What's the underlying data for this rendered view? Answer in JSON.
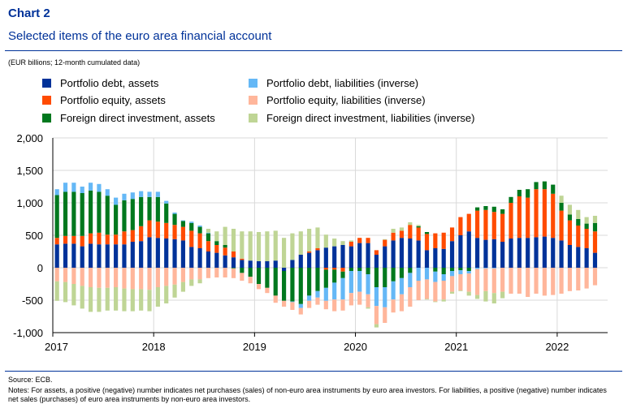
{
  "header": {
    "label": "Chart 2",
    "title": "Selected items of the euro area financial account",
    "units": "(EUR billions; 12-month cumulated data)"
  },
  "footer": {
    "source": "Source: ECB.",
    "notes": "Notes: For assets, a positive (negative) number indicates net purchases (sales) of non-euro area instruments by euro area investors. For liabilities, a positive (negative) number indicates net sales (purchases) of euro area instruments by non-euro area investors."
  },
  "chart_data": {
    "type": "bar",
    "stacked": true,
    "ylim": [
      -1000,
      2000
    ],
    "yticks": [
      2000,
      1500,
      1000,
      500,
      0,
      -500,
      -1000
    ],
    "ytick_labels": [
      "2,000",
      "1,500",
      "1,000",
      "500",
      "0",
      "-500",
      "-1,000"
    ],
    "xtick_labels": [
      "2017",
      "2018",
      "2019",
      "2020",
      "2021",
      "2022"
    ],
    "start": "2017-01",
    "grid": true,
    "legend_position": "top",
    "series": [
      {
        "name": "Portfolio debt, assets",
        "color": "#003299",
        "values": [
          360,
          370,
          370,
          330,
          370,
          360,
          360,
          360,
          360,
          400,
          410,
          470,
          460,
          450,
          440,
          420,
          320,
          300,
          250,
          230,
          190,
          160,
          120,
          110,
          100,
          100,
          110,
          -50,
          120,
          200,
          230,
          270,
          310,
          330,
          350,
          330,
          380,
          380,
          200,
          330,
          420,
          460,
          450,
          420,
          270,
          300,
          290,
          410,
          500,
          560,
          460,
          430,
          440,
          400,
          450,
          460,
          460,
          470,
          480,
          460,
          420,
          350,
          320,
          300,
          230
        ]
      },
      {
        "name": "Portfolio equity, assets",
        "color": "#FF4B00",
        "values": [
          100,
          120,
          120,
          160,
          160,
          180,
          150,
          150,
          200,
          180,
          230,
          260,
          250,
          240,
          220,
          210,
          250,
          230,
          160,
          120,
          120,
          90,
          20,
          0,
          0,
          0,
          0,
          0,
          0,
          0,
          20,
          30,
          -30,
          -30,
          -60,
          70,
          80,
          80,
          70,
          100,
          120,
          110,
          210,
          200,
          250,
          230,
          250,
          210,
          280,
          270,
          420,
          460,
          420,
          430,
          550,
          640,
          620,
          740,
          730,
          680,
          460,
          380,
          330,
          300,
          330
        ]
      },
      {
        "name": "Foreign direct investment, assets",
        "color": "#00781E",
        "values": [
          660,
          680,
          680,
          660,
          660,
          630,
          600,
          460,
          480,
          480,
          450,
          360,
          380,
          300,
          170,
          90,
          120,
          100,
          120,
          60,
          40,
          -10,
          -80,
          -140,
          -250,
          -310,
          -430,
          -460,
          -520,
          -560,
          -430,
          -360,
          -280,
          -200,
          -100,
          -50,
          -50,
          -100,
          -300,
          -300,
          -210,
          -160,
          -80,
          20,
          30,
          -60,
          -100,
          -50,
          -40,
          -50,
          50,
          60,
          80,
          70,
          90,
          100,
          130,
          110,
          120,
          140,
          120,
          90,
          100,
          80,
          130
        ]
      },
      {
        "name": "Portfolio debt, liabilities (inverse)",
        "color": "#65B8F6",
        "values": [
          90,
          140,
          140,
          100,
          120,
          120,
          100,
          110,
          100,
          100,
          90,
          80,
          80,
          40,
          20,
          10,
          20,
          20,
          10,
          0,
          0,
          0,
          0,
          0,
          0,
          0,
          0,
          0,
          -10,
          -60,
          -80,
          -100,
          -200,
          -260,
          -330,
          -340,
          -320,
          -310,
          -290,
          -310,
          -280,
          -250,
          -220,
          -200,
          -180,
          -160,
          -100,
          -80,
          -60,
          -40,
          -20,
          -10,
          -10,
          0,
          0,
          0,
          0,
          0,
          0,
          0,
          0,
          0,
          0,
          0,
          0
        ]
      },
      {
        "name": "Portfolio equity, liabilities (inverse)",
        "color": "#FFB69B",
        "values": [
          -210,
          -220,
          -250,
          -280,
          -300,
          -310,
          -310,
          -300,
          -320,
          -330,
          -330,
          -340,
          -300,
          -280,
          -260,
          -220,
          -180,
          -180,
          -160,
          -150,
          -150,
          -150,
          -120,
          -100,
          -80,
          -80,
          -110,
          -90,
          -120,
          -100,
          -110,
          -110,
          -130,
          -180,
          -170,
          -190,
          -200,
          -200,
          -280,
          -240,
          -200,
          -260,
          -300,
          -300,
          -300,
          -300,
          -290,
          -240,
          -250,
          -280,
          -400,
          -350,
          -380,
          -370,
          -400,
          -400,
          -450,
          -400,
          -430,
          -420,
          -400,
          -360,
          -350,
          -320,
          -270
        ]
      },
      {
        "name": "Foreign direct investment, liabilities (inverse)",
        "color": "#BFD595",
        "values": [
          -300,
          -310,
          -330,
          -350,
          -380,
          -370,
          -350,
          -360,
          -350,
          -340,
          -330,
          -330,
          -300,
          -270,
          -200,
          -150,
          -100,
          -60,
          60,
          150,
          280,
          350,
          420,
          450,
          450,
          460,
          460,
          460,
          410,
          360,
          350,
          320,
          200,
          120,
          60,
          20,
          0,
          -20,
          -50,
          10,
          60,
          50,
          40,
          20,
          -10,
          -10,
          -30,
          -30,
          -10,
          -60,
          -60,
          -160,
          -160,
          -100,
          0,
          0,
          0,
          0,
          0,
          0,
          110,
          150,
          140,
          100,
          110
        ]
      }
    ]
  }
}
